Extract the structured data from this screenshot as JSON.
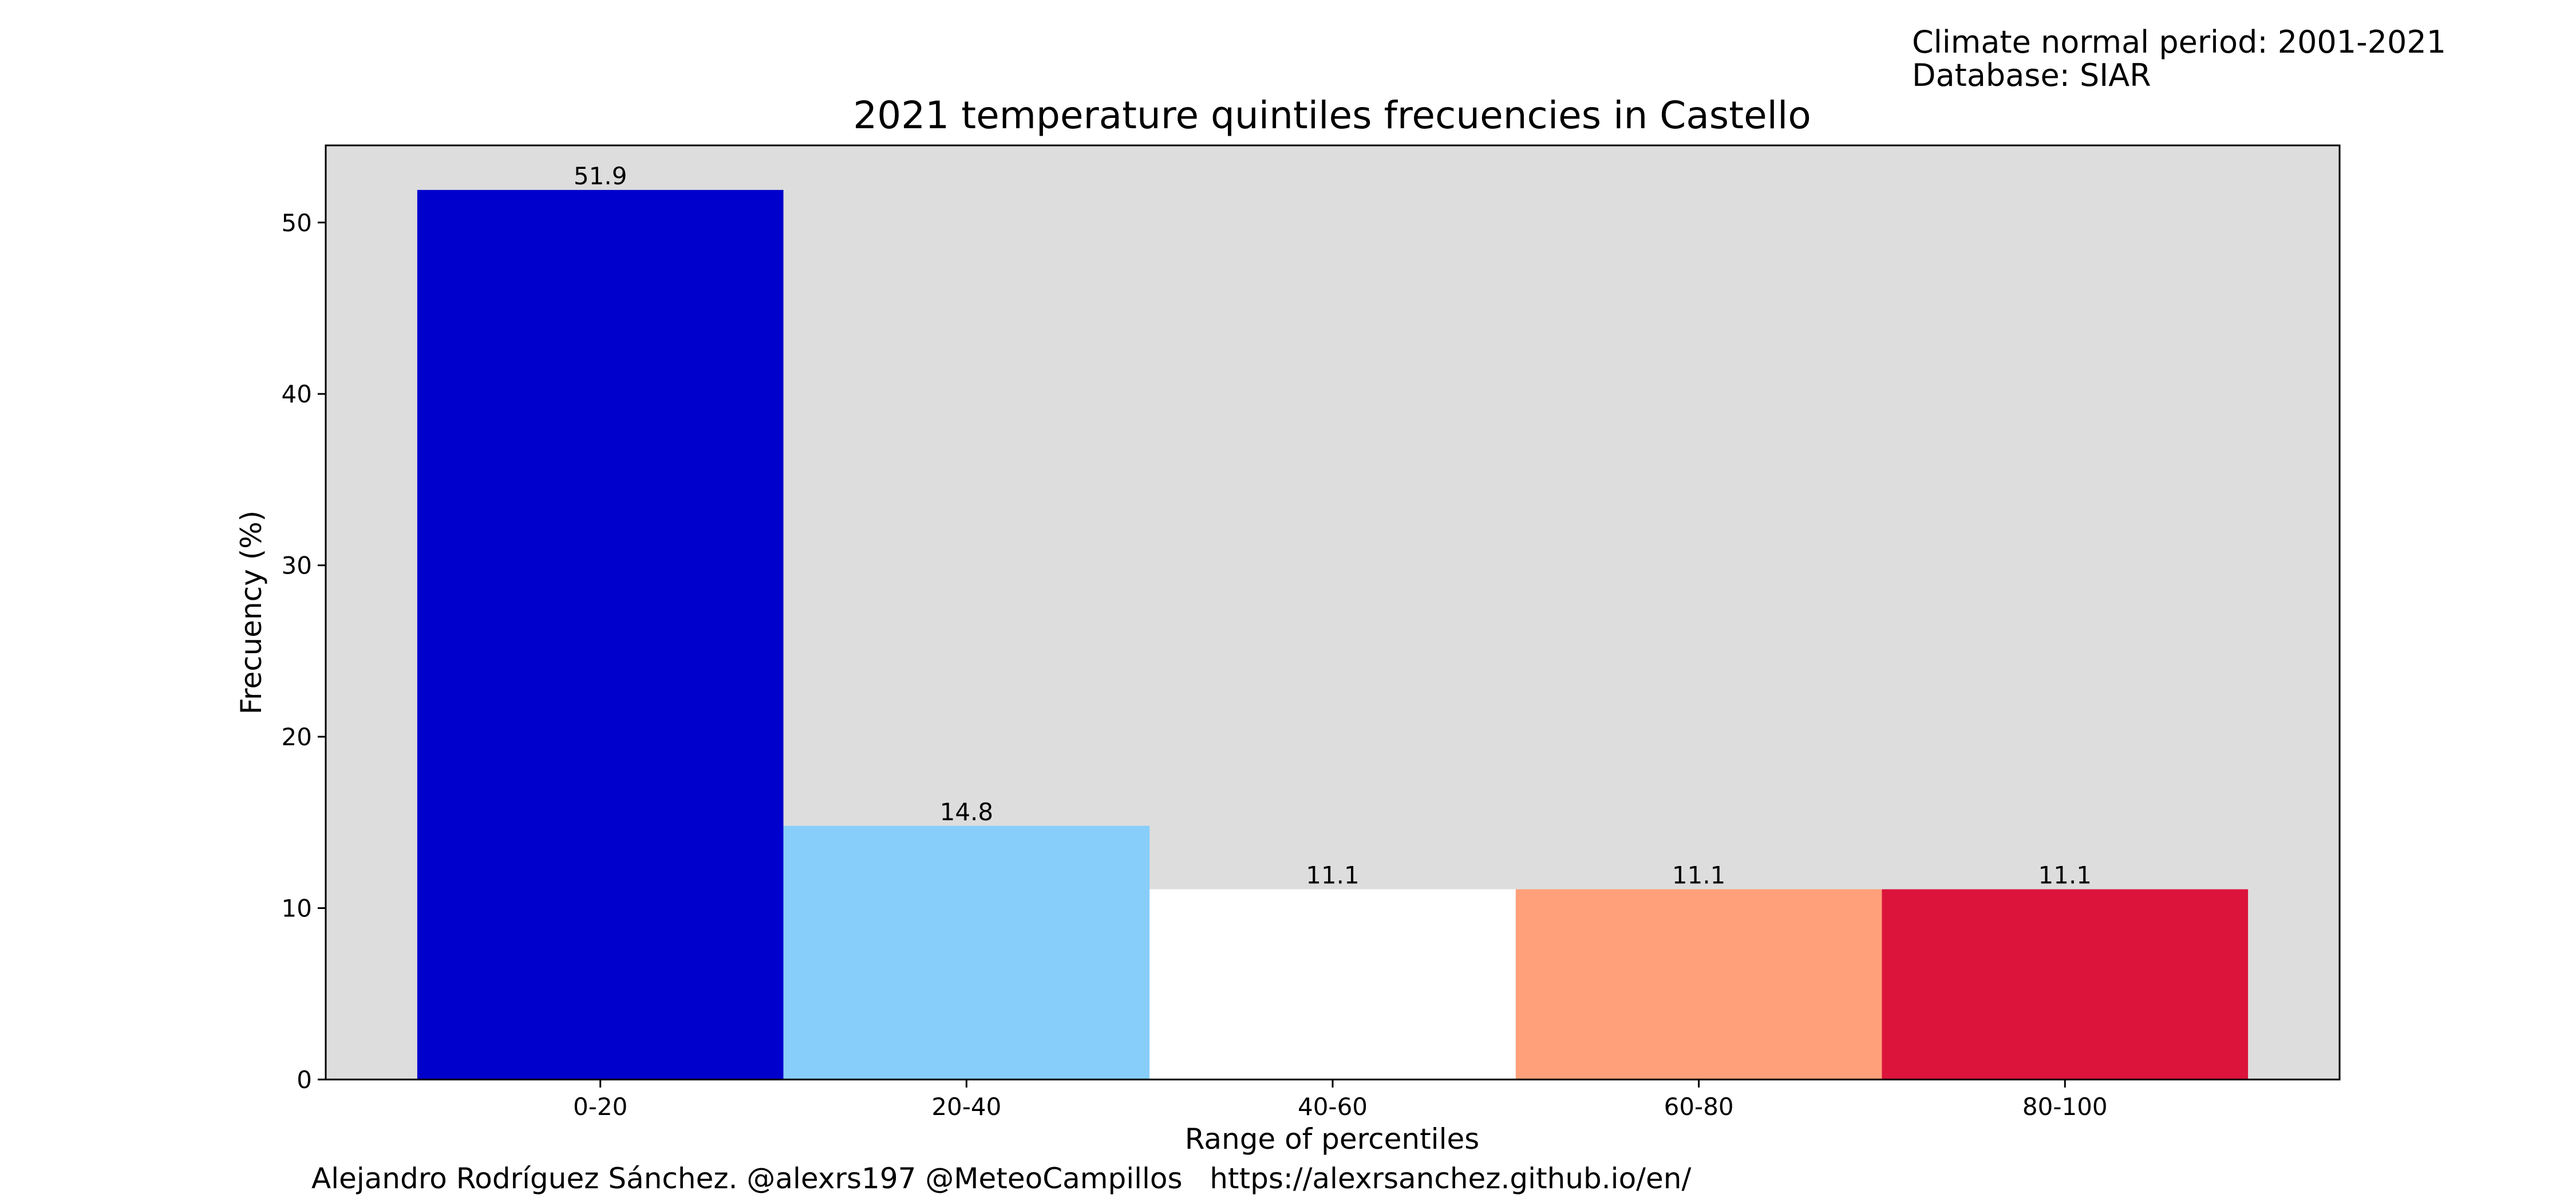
{
  "header_note": {
    "period": "Climate normal period: 2001-2021",
    "database": "Database: SIAR"
  },
  "footer": {
    "credit": "Alejandro Rodríguez Sánchez. @alexrs197 @MeteoCampillos   https://alexrsanchez.github.io/en/"
  },
  "colors": {
    "plot_background": "#dddddd",
    "bars": [
      "#0000cd",
      "#87cefa",
      "#ffffff",
      "#ffa07a",
      "#dc143c"
    ]
  },
  "chart_data": {
    "type": "bar",
    "title": "2021 temperature quintiles frecuencies in Castello",
    "xlabel": "Range of percentiles",
    "ylabel": "Frecuency (%)",
    "categories": [
      "0-20",
      "20-40",
      "40-60",
      "60-80",
      "80-100"
    ],
    "values": [
      51.9,
      14.8,
      11.1,
      11.1,
      11.1
    ],
    "data_labels": [
      "51.9",
      "14.8",
      "11.1",
      "11.1",
      "11.1"
    ],
    "yticks": [
      0,
      10,
      20,
      30,
      40,
      50
    ],
    "ylim": [
      0,
      54.5
    ],
    "grid": false,
    "legend": "none"
  }
}
